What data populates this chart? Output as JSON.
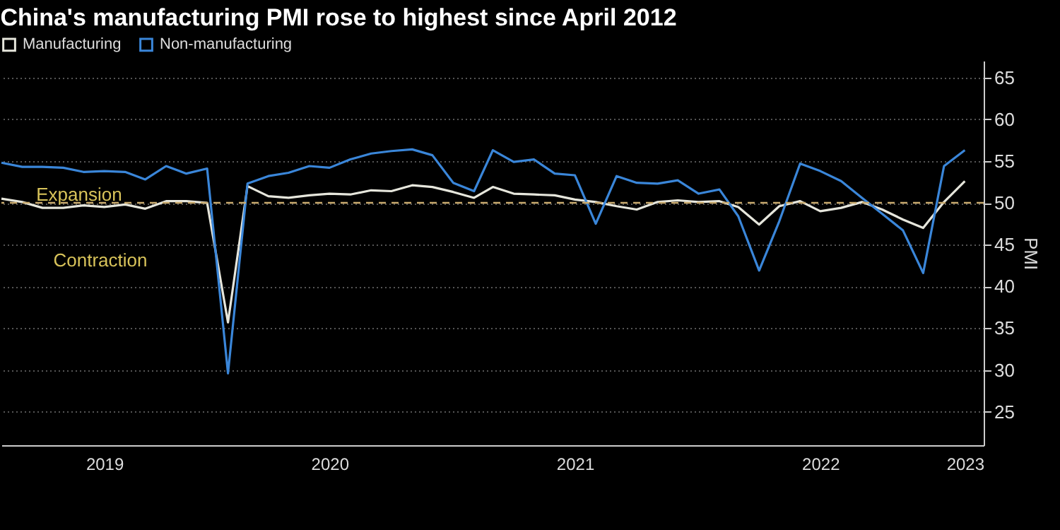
{
  "chart_data": {
    "type": "line",
    "title": "China's manufacturing PMI rose to highest since April 2012",
    "x": [
      "2019-03",
      "2019-04",
      "2019-05",
      "2019-06",
      "2019-07",
      "2019-08",
      "2019-09",
      "2019-10",
      "2019-11",
      "2019-12",
      "2020-01",
      "2020-02",
      "2020-03",
      "2020-04",
      "2020-05",
      "2020-06",
      "2020-07",
      "2020-08",
      "2020-09",
      "2020-10",
      "2020-11",
      "2020-12",
      "2021-01",
      "2021-02",
      "2021-03",
      "2021-04",
      "2021-05",
      "2021-06",
      "2021-07",
      "2021-08",
      "2021-09",
      "2021-10",
      "2021-11",
      "2021-12",
      "2022-01",
      "2022-02",
      "2022-03",
      "2022-04",
      "2022-05",
      "2022-06",
      "2022-07",
      "2022-08",
      "2022-09",
      "2022-10",
      "2022-11",
      "2022-12",
      "2023-01",
      "2023-02"
    ],
    "series": [
      {
        "name": "Manufacturing",
        "color": "#e6e6dc",
        "values": [
          50.5,
          50.1,
          49.4,
          49.4,
          49.7,
          49.5,
          49.8,
          49.3,
          50.2,
          50.2,
          50.0,
          35.7,
          52.0,
          50.8,
          50.6,
          50.9,
          51.1,
          51.0,
          51.5,
          51.4,
          52.1,
          51.9,
          51.3,
          50.6,
          51.9,
          51.1,
          51.0,
          50.9,
          50.4,
          50.1,
          49.6,
          49.2,
          50.1,
          50.3,
          50.1,
          50.2,
          49.5,
          47.4,
          49.6,
          50.2,
          49.0,
          49.4,
          50.1,
          49.2,
          48.0,
          47.0,
          50.1,
          52.6
        ]
      },
      {
        "name": "Non-manufacturing",
        "color": "#3a86d9",
        "values": [
          54.8,
          54.3,
          54.3,
          54.2,
          53.7,
          53.8,
          53.7,
          52.8,
          54.4,
          53.5,
          54.1,
          29.6,
          52.3,
          53.2,
          53.6,
          54.4,
          54.2,
          55.2,
          55.9,
          56.2,
          56.4,
          55.7,
          52.4,
          51.4,
          56.3,
          54.9,
          55.2,
          53.5,
          53.3,
          47.5,
          53.2,
          52.4,
          52.3,
          52.7,
          51.1,
          51.6,
          48.4,
          41.9,
          47.8,
          54.7,
          53.8,
          52.6,
          50.6,
          48.7,
          46.7,
          41.6,
          54.4,
          56.3
        ]
      }
    ],
    "xlim": [
      "2019-03",
      "2023-03"
    ],
    "xticks": [
      {
        "value": "2019-08",
        "label": "2019"
      },
      {
        "value": "2020-07",
        "label": "2020"
      },
      {
        "value": "2021-07",
        "label": "2021"
      },
      {
        "value": "2022-07",
        "label": "2022"
      },
      {
        "value": "2023-02",
        "label": "2023"
      }
    ],
    "ylim": [
      21,
      67
    ],
    "yticks": [
      25,
      30,
      35,
      40,
      45,
      50,
      55,
      60,
      65
    ],
    "ylabel": "PMI",
    "grid": "y",
    "legend": "top left",
    "ref_lines": [
      {
        "axis": "y",
        "value": 50,
        "color": "#c9aa6e",
        "line_style": "dashed"
      }
    ],
    "annotations": [
      "Expansion",
      "Contraction"
    ]
  }
}
